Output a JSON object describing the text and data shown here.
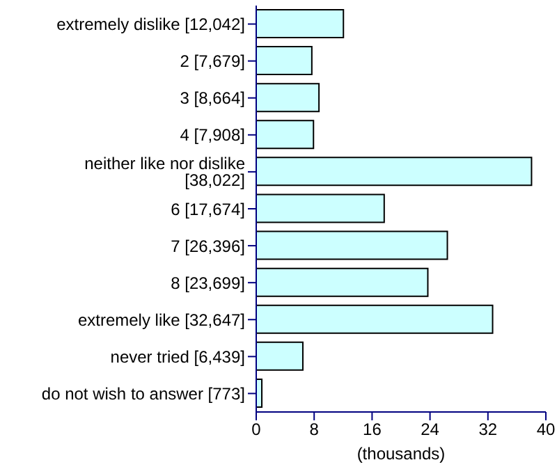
{
  "chart_data": {
    "type": "bar",
    "orientation": "horizontal",
    "xlabel": "(thousands)",
    "categories": [
      "extremely dislike [12,042]",
      "2 [7,679]",
      "3 [8,664]",
      "4 [7,908]",
      "neither like nor dislike [38,022]",
      "6 [17,674]",
      "7 [26,396]",
      "8 [23,699]",
      "extremely like [32,647]",
      "never tried [6,439]",
      "do not wish to answer [773]"
    ],
    "values": [
      12.042,
      7.679,
      8.664,
      7.908,
      38.022,
      17.674,
      26.396,
      23.699,
      32.647,
      6.439,
      0.773
    ],
    "color": "#ccffff",
    "xlim": [
      0,
      40
    ],
    "xticks": [
      0,
      8,
      16,
      24,
      32,
      40
    ],
    "grid": false,
    "legend": false
  }
}
